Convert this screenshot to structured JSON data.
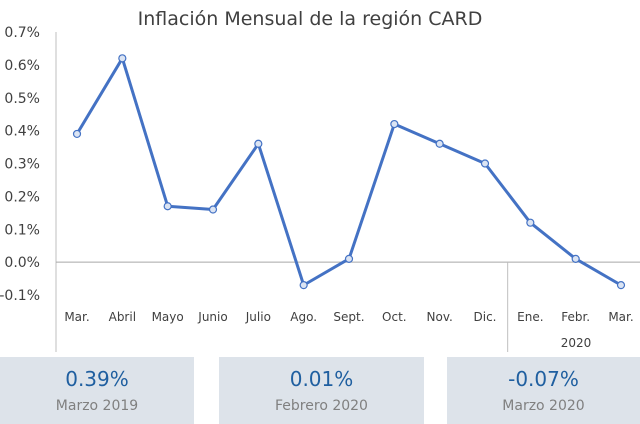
{
  "chart_data": {
    "type": "line",
    "title": "Inflación Mensual de la región CARD",
    "categories": [
      "Mar.",
      "Abril",
      "Mayo",
      "Junio",
      "Julio",
      "Ago.",
      "Sept.",
      "Oct.",
      "Nov.",
      "Dic.",
      "Ene.",
      "Febr.",
      "Mar."
    ],
    "year_group_label": "2020",
    "series": [
      {
        "values": [
          0.39,
          0.62,
          0.17,
          0.16,
          0.36,
          -0.07,
          0.01,
          0.42,
          0.36,
          0.3,
          0.12,
          0.01,
          -0.07
        ]
      }
    ],
    "ylim": [
      -0.1,
      0.7
    ],
    "yticks": [
      -0.1,
      0.0,
      0.1,
      0.2,
      0.3,
      0.4,
      0.5,
      0.6,
      0.7
    ],
    "ytick_labels": [
      "-0.1%",
      "0.0%",
      "0.1%",
      "0.2%",
      "0.3%",
      "0.4%",
      "0.5%",
      "0.6%",
      "0.7%"
    ],
    "line_color": "#4472c4",
    "marker_fill": "#dbe4f3",
    "grid": false,
    "legend": "none"
  },
  "summary_cards": [
    {
      "value": "0.39%",
      "label": "Marzo 2019"
    },
    {
      "value": "0.01%",
      "label": "Febrero 2020"
    },
    {
      "value": "-0.07%",
      "label": "Marzo 2020"
    }
  ]
}
